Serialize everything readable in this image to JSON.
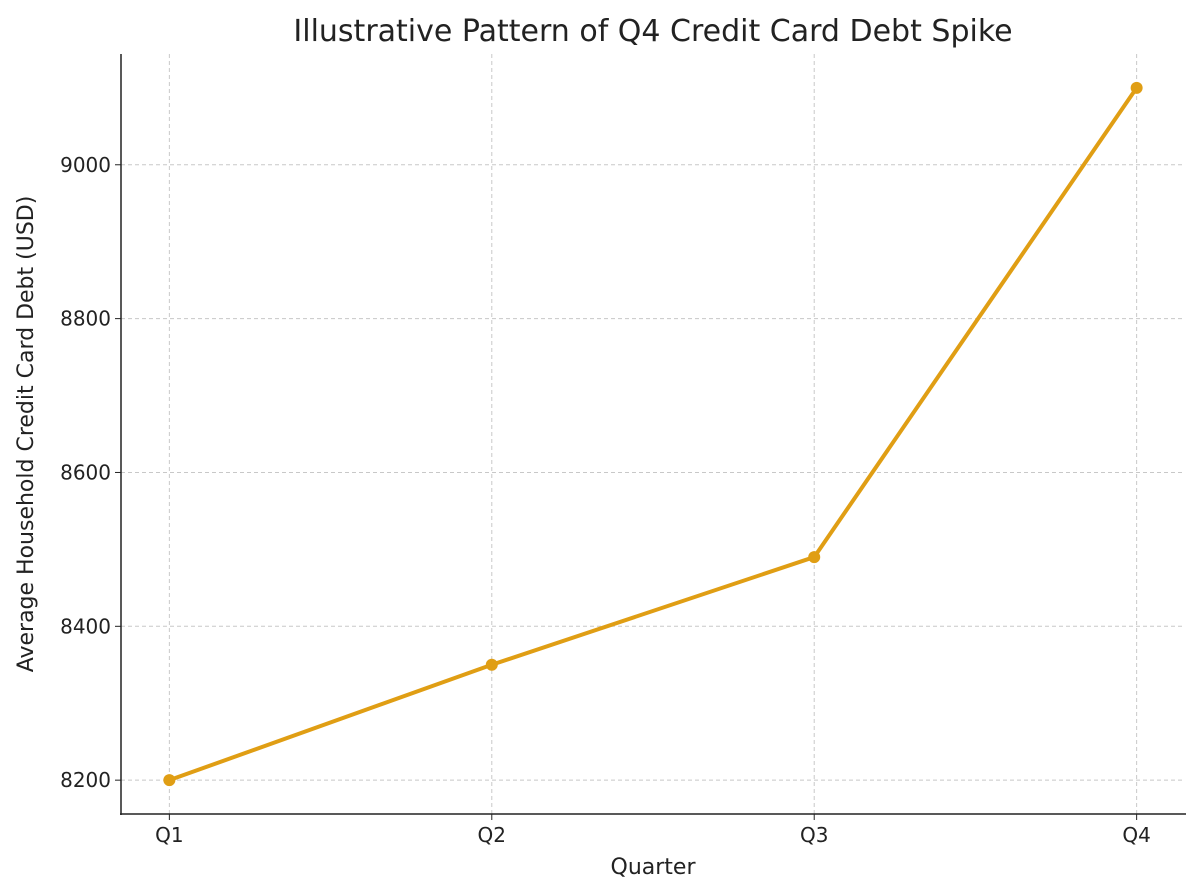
{
  "chart_data": {
    "type": "line",
    "title": "Illustrative Pattern of Q4 Credit Card Debt Spike",
    "xlabel": "Quarter",
    "ylabel": "Average Household Credit Card Debt (USD)",
    "categories": [
      "Q1",
      "Q2",
      "Q3",
      "Q4"
    ],
    "series": [
      {
        "values": [
          8200,
          8350,
          8490,
          9100
        ],
        "color": "#E09E14",
        "marker": "circle"
      }
    ],
    "yticks": [
      8200,
      8400,
      8600,
      8800,
      9000
    ],
    "ylim": [
      8156,
      9144
    ],
    "xlim": [
      -0.15,
      3.15
    ],
    "grid": true,
    "legend": "none"
  }
}
